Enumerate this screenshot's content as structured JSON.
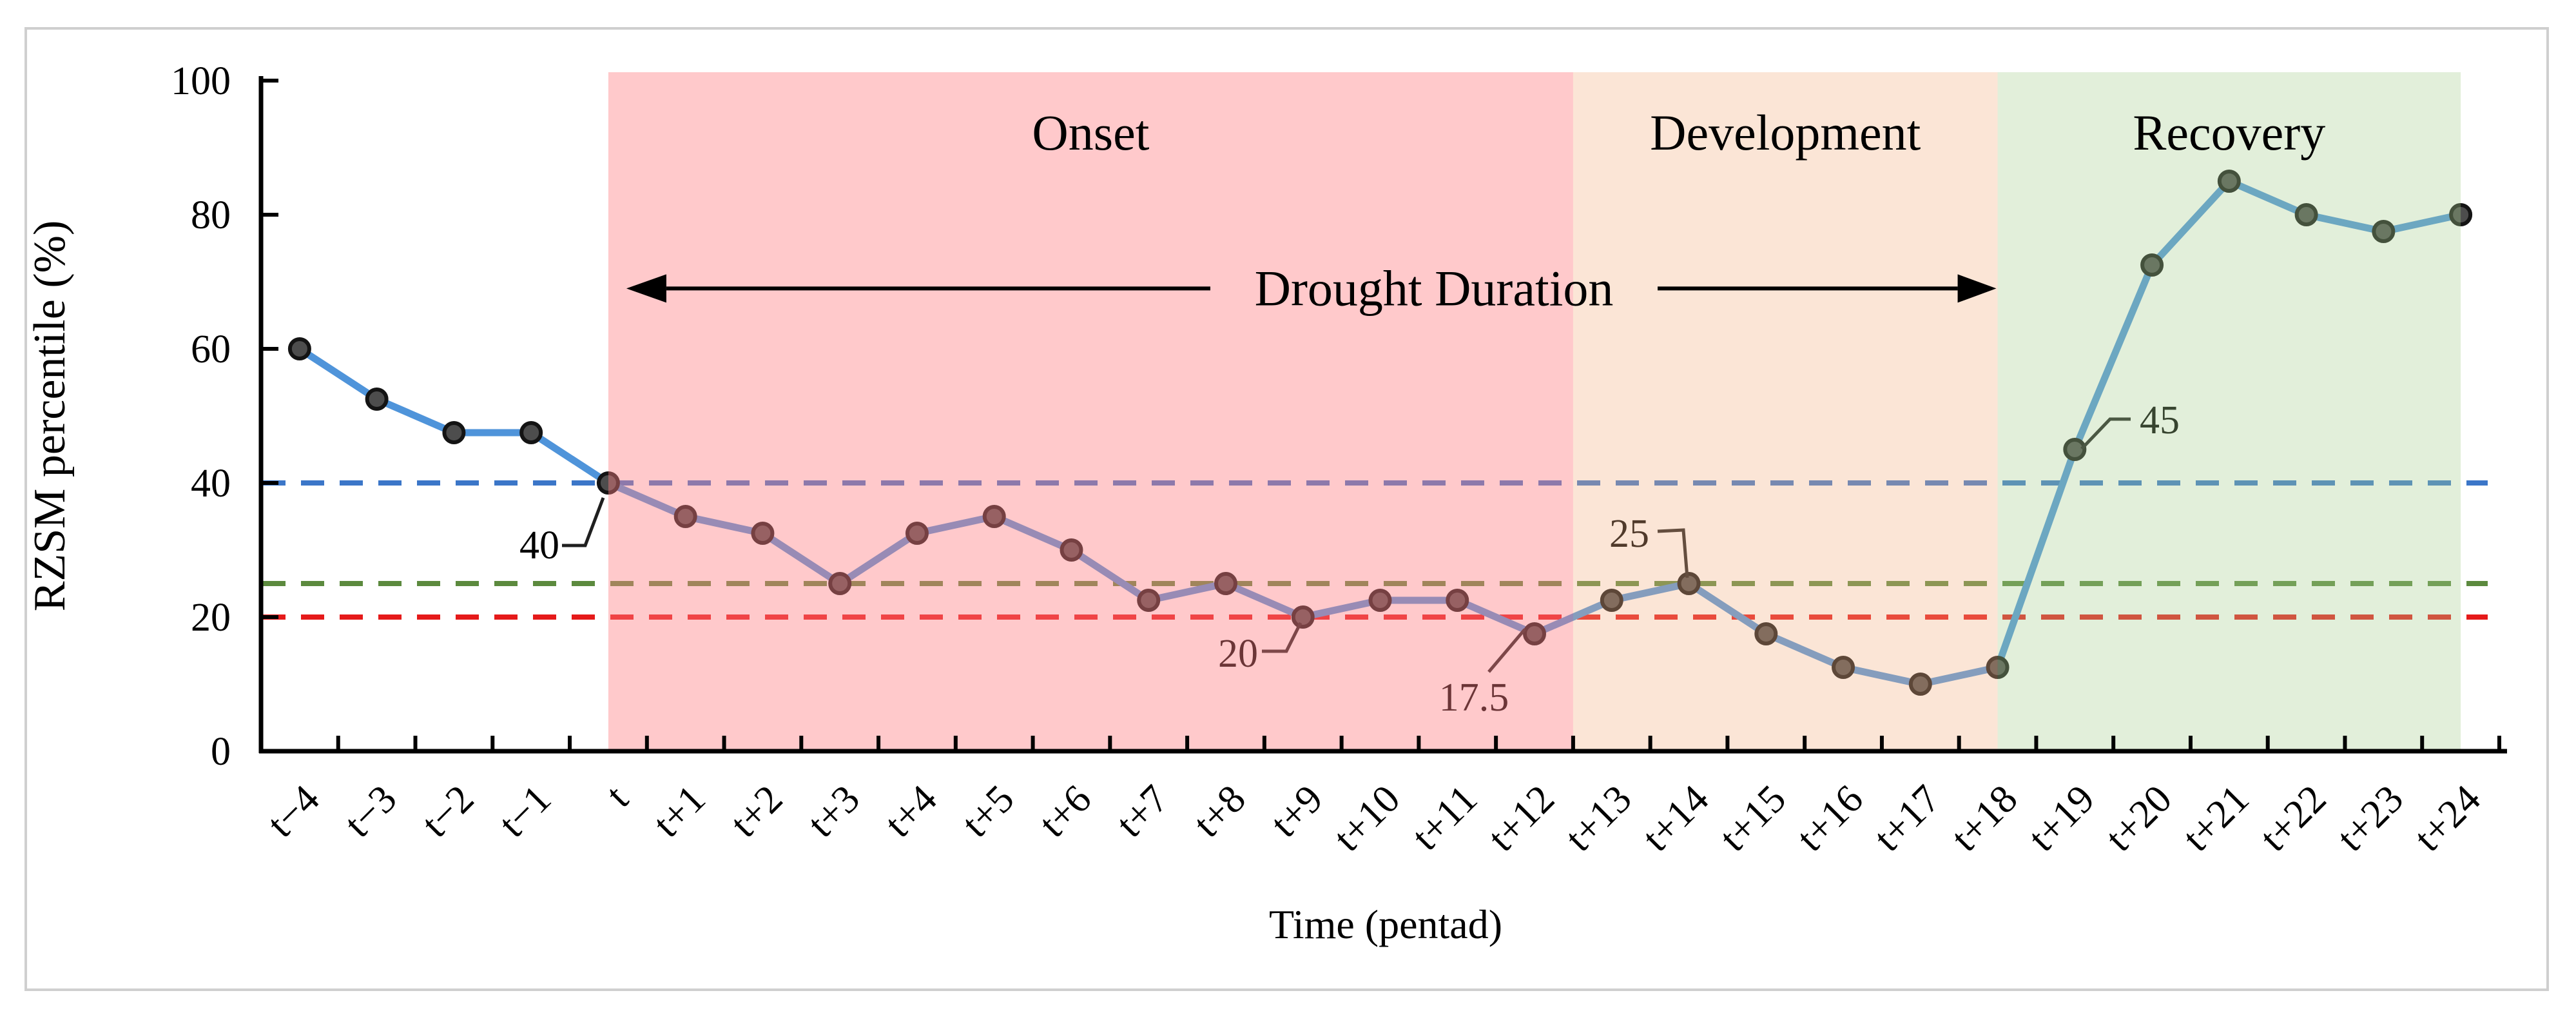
{
  "figure": {
    "border_color": "#cfcfcf",
    "background": "#ffffff"
  },
  "chart_data": {
    "type": "line",
    "title": "",
    "xlabel": "Time (pentad)",
    "ylabel": "RZSM percentile (%)",
    "ylim": [
      0,
      100
    ],
    "y_ticks": [
      0,
      20,
      40,
      60,
      80,
      100
    ],
    "grid": false,
    "legend": "none",
    "categories": [
      "t−4",
      "t−3",
      "t−2",
      "t−1",
      "t",
      "t+1",
      "t+2",
      "t+3",
      "t+4",
      "t+5",
      "t+6",
      "t+7",
      "t+8",
      "t+9",
      "t+10",
      "t+11",
      "t+12",
      "t+13",
      "t+14",
      "t+15",
      "t+16",
      "t+17",
      "t+18",
      "t+19",
      "t+20",
      "t+21",
      "t+22",
      "t+23",
      "t+24"
    ],
    "series": [
      {
        "name": "RZSM percentile",
        "color": "#4f94da",
        "marker_fill": "#4d4d4d",
        "marker_edge": "#141414",
        "values": [
          60,
          52.5,
          47.5,
          47.5,
          40,
          35,
          32.5,
          25,
          32.5,
          35,
          30,
          22.5,
          25,
          20,
          22.5,
          22.5,
          17.5,
          22.5,
          25,
          17.5,
          12.5,
          10,
          12.5,
          45,
          72.5,
          85,
          80,
          77.5,
          80
        ]
      }
    ],
    "thresholds": [
      {
        "value": 40,
        "color": "#3b76c8",
        "style": "dashed"
      },
      {
        "value": 25,
        "color": "#5c8a3e",
        "style": "dashed"
      },
      {
        "value": 20,
        "color": "#e51a1a",
        "style": "dashed"
      }
    ],
    "regions": [
      {
        "label": "Onset",
        "start_offset": 0,
        "end_offset": 12.5,
        "overlay": "rgba(255,126,131,0.42)"
      },
      {
        "label": "Development",
        "start_offset": 12.5,
        "end_offset": 18,
        "overlay": "rgba(242,176,130,0.33)"
      },
      {
        "label": "Recovery",
        "start_offset": 18,
        "end_offset": 24,
        "overlay": "rgba(167,206,142,0.33)"
      }
    ],
    "point_annotations": [
      {
        "label": "40",
        "at": "t",
        "value": 40
      },
      {
        "label": "20",
        "at": "t+9",
        "value": 20
      },
      {
        "label": "17.5",
        "at": "t+12",
        "value": 17.5
      },
      {
        "label": "25",
        "at": "t+14",
        "value": 25
      },
      {
        "label": "45",
        "at": "t+19",
        "value": 45
      }
    ],
    "span_annotation": {
      "label": "Drought Duration",
      "from": "t",
      "to": "t+18",
      "y_value": 69
    }
  }
}
